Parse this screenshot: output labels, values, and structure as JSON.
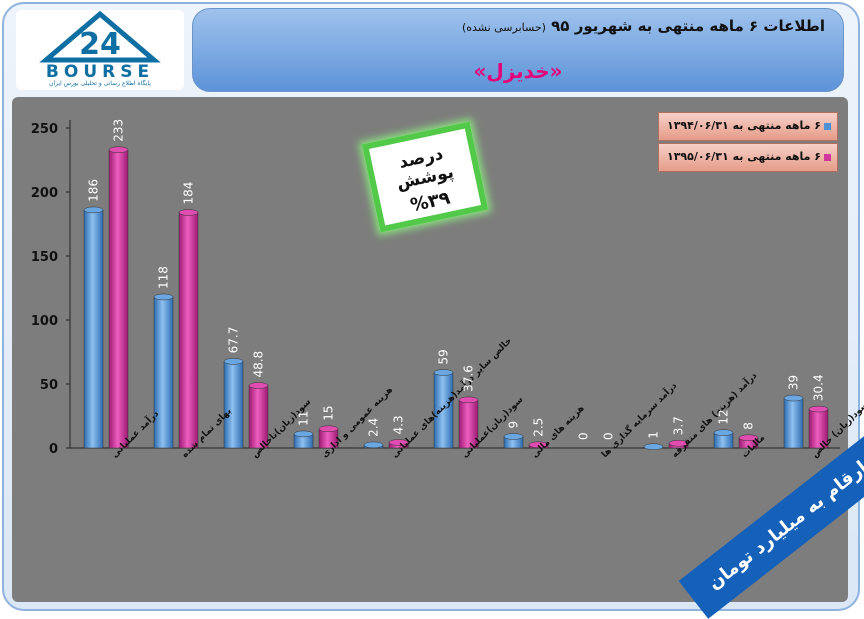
{
  "header": {
    "title": "اطلاعات ۶ ماهه منتهی به شهریور ۹۵",
    "subtitle": "(حسابرسی نشده)",
    "company": "«خدیزل»"
  },
  "logo": {
    "text": "BOURSE",
    "tagline": "پایگاه اطلاع رسانی و تحلیلی بورس ایران",
    "mark": "24"
  },
  "coverage": {
    "label": "درصد پوشش",
    "value": "%۳۹"
  },
  "units_note": "ارقام به میلیارد تومان",
  "colors": {
    "series1": "#4f8fd3",
    "series2": "#d2379c",
    "plot_bg": "#7d7d7d",
    "legend_bg": "#f2b8a8",
    "coverage_border": "#53c94a",
    "units_bg": "#1560b8"
  },
  "chart_data": {
    "type": "bar",
    "ylim": [
      0,
      250
    ],
    "yticks": [
      0,
      50,
      100,
      150,
      200,
      250
    ],
    "categories": [
      "درآمد عملیاتی",
      "بهای تمام شده",
      "سود(زیان)ناخالص",
      "هزینه عمومی و اداری",
      "خالص سایر درآمد(هزینه)های عملیاتی",
      "سود(زیان)عملیاتی",
      "هزینه های مالی",
      "درآمد سرمایه گذاری ها",
      "درآمد (هزینه) های متفرقه",
      "مالیات",
      "سود(زیان) خالص"
    ],
    "series": [
      {
        "name": "۶ ماهه منتهی به ۱۳۹۴/۰۶/۳۱",
        "values": [
          186,
          118,
          67.7,
          11,
          2.4,
          59,
          9,
          0,
          1,
          12,
          39
        ]
      },
      {
        "name": "۶ ماهه منتهی به ۱۳۹۵/۰۶/۳۱",
        "values": [
          233,
          184,
          48.8,
          15,
          4.3,
          37.6,
          2.5,
          0,
          3.7,
          8,
          30.4
        ]
      }
    ],
    "data_labels_1": [
      "186",
      "118",
      "67.7",
      "11",
      "2.4",
      "59",
      "9",
      "0",
      "1",
      "12",
      "39"
    ],
    "data_labels_2": [
      "233",
      "184",
      "48.8",
      "15",
      "4.3",
      "37.6",
      "2.5",
      "0",
      "3.7",
      "8",
      "30.4"
    ],
    "grid": false,
    "legend_position": "top-right"
  }
}
